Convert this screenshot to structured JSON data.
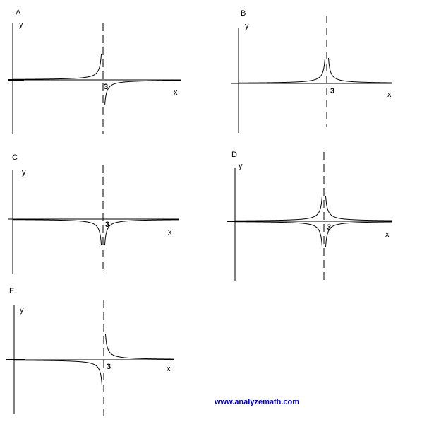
{
  "chart_data": [
    {
      "type": "line",
      "label": "A",
      "xlabel": "x",
      "ylabel": "y",
      "asymptote_label": "3",
      "shape": "odd-neg",
      "grid": false
    },
    {
      "type": "line",
      "label": "B",
      "xlabel": "x",
      "ylabel": "y",
      "asymptote_label": "3",
      "shape": "even-pos",
      "grid": false
    },
    {
      "type": "line",
      "label": "C",
      "xlabel": "x",
      "ylabel": "y",
      "asymptote_label": "3",
      "shape": "even-neg",
      "grid": false
    },
    {
      "type": "line",
      "label": "D",
      "xlabel": "x",
      "ylabel": "y",
      "asymptote_label": "3",
      "shape": "even-both",
      "grid": false
    },
    {
      "type": "line",
      "label": "E",
      "xlabel": "x",
      "ylabel": "y",
      "asymptote_label": "3",
      "shape": "odd-pos",
      "grid": false
    }
  ],
  "footer": {
    "website": "www.analyzemath.com"
  }
}
